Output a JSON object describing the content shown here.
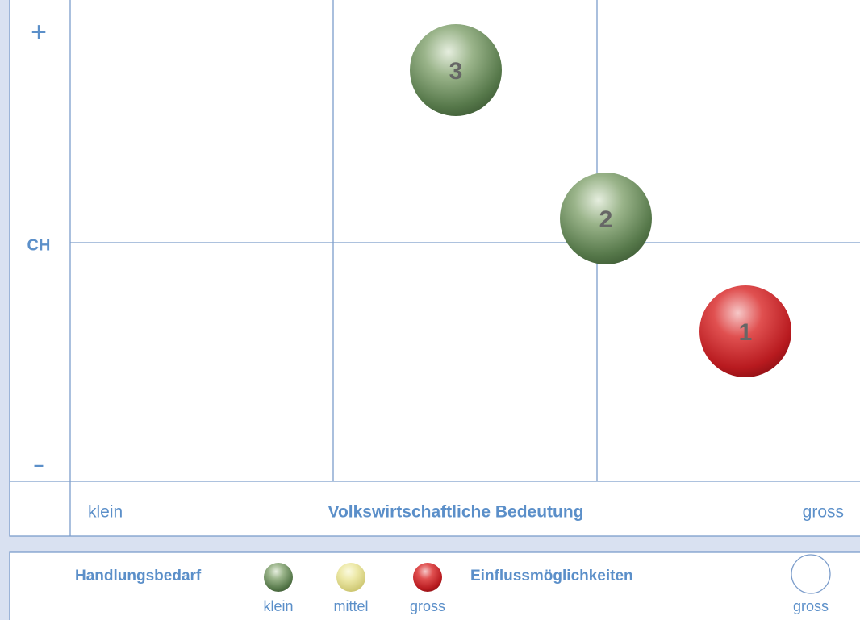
{
  "matrix": {
    "y_axis": {
      "top": "+",
      "middle": "CH",
      "bottom": "–"
    },
    "x_axis": {
      "left": "klein",
      "title": "Volkswirtschaftliche Bedeutung",
      "right": "gross"
    },
    "bubbles": [
      {
        "label": "3",
        "color": "green"
      },
      {
        "label": "2",
        "color": "green"
      },
      {
        "label": "1",
        "color": "red"
      }
    ]
  },
  "legend": {
    "need_title": "Handlungsbedarf",
    "need_items": [
      {
        "label": "klein",
        "color": "green"
      },
      {
        "label": "mittel",
        "color": "yellow"
      },
      {
        "label": "gross",
        "color": "red"
      }
    ],
    "influence_title": "Einflussmöglichkeiten",
    "influence_item": "gross"
  }
}
